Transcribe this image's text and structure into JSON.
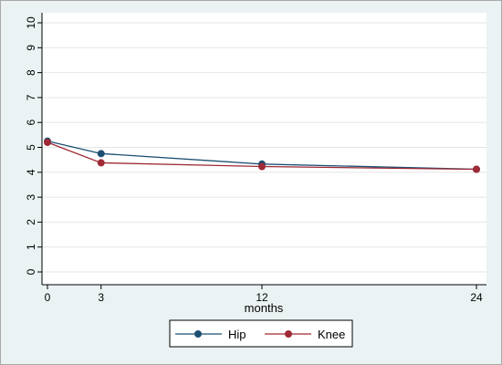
{
  "chart_data": {
    "type": "line",
    "title": "",
    "xlabel": "months",
    "ylabel": "",
    "x": [
      0,
      3,
      12,
      24
    ],
    "x_ticks": [
      "0",
      "3",
      "12",
      "24"
    ],
    "y_ticks": [
      "0",
      "1",
      "2",
      "3",
      "4",
      "5",
      "6",
      "7",
      "8",
      "9",
      "10"
    ],
    "xlim": [
      0,
      24
    ],
    "ylim": [
      0,
      10
    ],
    "grid": true,
    "legend_position": "bottom",
    "series": [
      {
        "name": "Hip",
        "color": "#1b4f72",
        "values": [
          5.25,
          4.75,
          4.33,
          4.12
        ]
      },
      {
        "name": "Knee",
        "color": "#9e2a35",
        "values": [
          5.2,
          4.38,
          4.23,
          4.12
        ]
      }
    ]
  }
}
